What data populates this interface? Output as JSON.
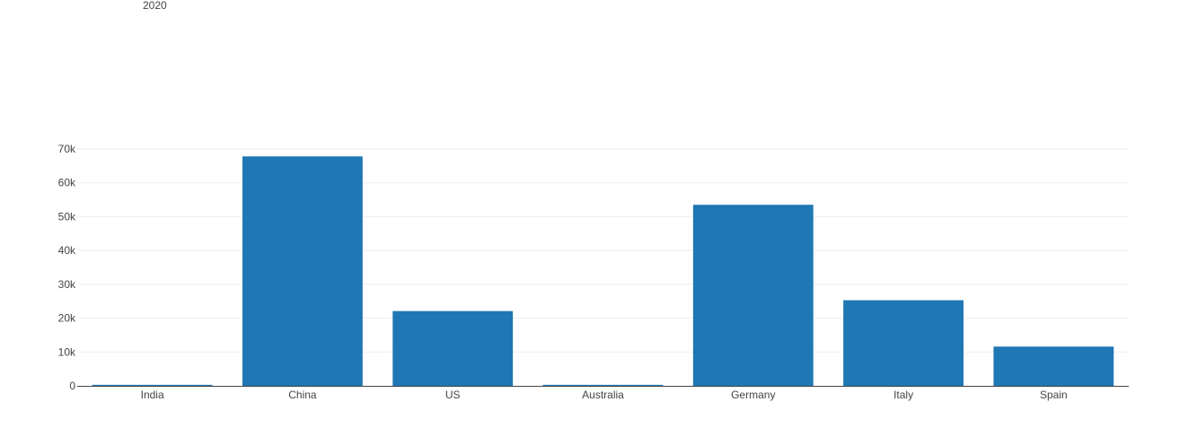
{
  "chart_data": {
    "type": "bar",
    "title": "2020",
    "categories": [
      "India",
      "China",
      "US",
      "Australia",
      "Germany",
      "Italy",
      "Spain"
    ],
    "series": [
      {
        "values": [
          300,
          67800,
          22100,
          300,
          53500,
          25300,
          11600
        ]
      }
    ],
    "ylim": [
      0,
      70000
    ],
    "yticks": [
      0,
      10000,
      20000,
      30000,
      40000,
      50000,
      60000,
      70000
    ],
    "ytick_labels": [
      "0",
      "10k",
      "20k",
      "30k",
      "40k",
      "50k",
      "60k",
      "70k"
    ],
    "grid": true,
    "legend": "none",
    "bar_color": "#1f77b4"
  }
}
